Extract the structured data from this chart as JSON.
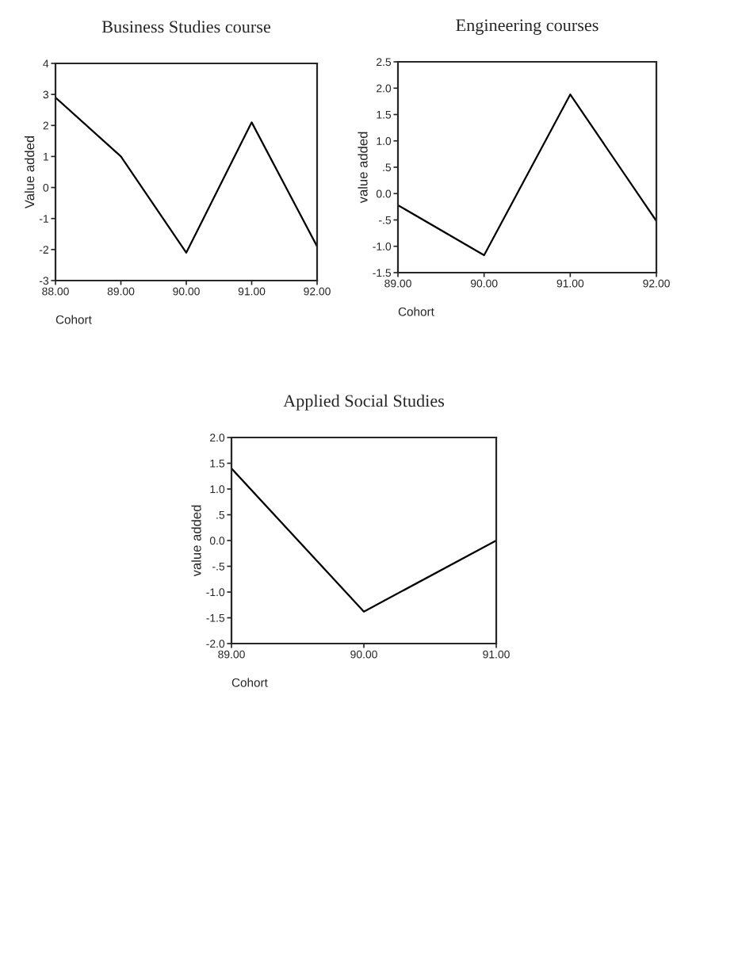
{
  "chart_data": [
    {
      "type": "line",
      "title": "Business Studies course",
      "xlabel": "Cohort",
      "ylabel": "Value added",
      "x": [
        88,
        89,
        90,
        91,
        92
      ],
      "series": [
        {
          "color": "#000000",
          "values": [
            2.9,
            1.0,
            -2.1,
            2.1,
            -1.9
          ]
        }
      ],
      "xlim": [
        88,
        92
      ],
      "ylim": [
        -3,
        4
      ],
      "xticks": [
        {
          "value": 88,
          "label": "88.00"
        },
        {
          "value": 89,
          "label": "89.00"
        },
        {
          "value": 90,
          "label": "90.00"
        },
        {
          "value": 91,
          "label": "91.00"
        },
        {
          "value": 92,
          "label": "92.00"
        }
      ],
      "yticks": [
        -3,
        -2,
        -1,
        0,
        1,
        2,
        3,
        4
      ],
      "grid": false,
      "legend": false
    },
    {
      "type": "line",
      "title": "Engineering courses",
      "xlabel": "Cohort",
      "ylabel": "value added",
      "x": [
        89,
        90,
        91,
        92
      ],
      "series": [
        {
          "color": "#000000",
          "values": [
            -0.22,
            -1.17,
            1.88,
            -0.52
          ]
        }
      ],
      "xlim": [
        89,
        92
      ],
      "ylim": [
        -1.5,
        2.5
      ],
      "xticks": [
        {
          "value": 89,
          "label": "89.00"
        },
        {
          "value": 90,
          "label": "90.00"
        },
        {
          "value": 91,
          "label": "91.00"
        },
        {
          "value": 92,
          "label": "92.00"
        }
      ],
      "yticks": [
        {
          "value": -1.5,
          "label": "-1.5"
        },
        {
          "value": -1,
          "label": "-1.0"
        },
        {
          "value": -0.5,
          "label": "-.5"
        },
        {
          "value": 0,
          "label": "0.0"
        },
        {
          "value": 0.5,
          "label": ".5"
        },
        {
          "value": 1,
          "label": "1.0"
        },
        {
          "value": 1.5,
          "label": "1.5"
        },
        {
          "value": 2,
          "label": "2.0"
        },
        {
          "value": 2.5,
          "label": "2.5"
        }
      ],
      "grid": false,
      "legend": false
    },
    {
      "type": "line",
      "title": "Applied Social Studies",
      "xlabel": "Cohort",
      "ylabel": "value added",
      "x": [
        89,
        90,
        91
      ],
      "series": [
        {
          "color": "#000000",
          "values": [
            1.4,
            -1.38,
            0.0
          ]
        }
      ],
      "xlim": [
        89,
        91
      ],
      "ylim": [
        -2,
        2
      ],
      "xticks": [
        {
          "value": 89,
          "label": "89.00"
        },
        {
          "value": 90,
          "label": "90.00"
        },
        {
          "value": 91,
          "label": "91.00"
        }
      ],
      "yticks": [
        {
          "value": -2,
          "label": "-2.0"
        },
        {
          "value": -1.5,
          "label": "-1.5"
        },
        {
          "value": -1,
          "label": "-1.0"
        },
        {
          "value": -0.5,
          "label": "-.5"
        },
        {
          "value": 0,
          "label": "0.0"
        },
        {
          "value": 0.5,
          "label": ".5"
        },
        {
          "value": 1,
          "label": "1.0"
        },
        {
          "value": 1.5,
          "label": "1.5"
        },
        {
          "value": 2,
          "label": "2.0"
        }
      ],
      "grid": false,
      "legend": false
    }
  ]
}
